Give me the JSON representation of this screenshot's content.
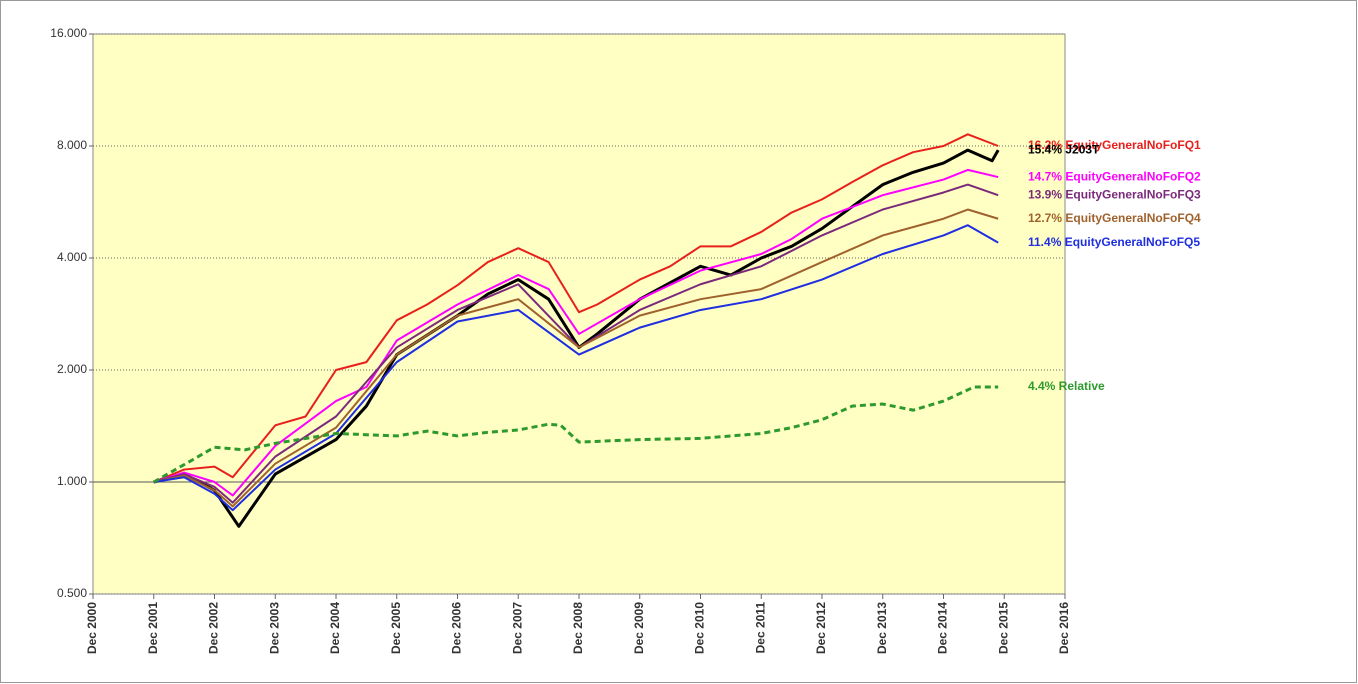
{
  "chart_data": {
    "type": "line",
    "log_scale": true,
    "ylim": [
      0.5,
      16
    ],
    "yticks": [
      {
        "value": 0.5,
        "label": "0.500"
      },
      {
        "value": 1,
        "label": "1.000"
      },
      {
        "value": 2,
        "label": "2.000"
      },
      {
        "value": 4,
        "label": "4.000"
      },
      {
        "value": 8,
        "label": "8.000"
      },
      {
        "value": 16,
        "label": "16.000"
      }
    ],
    "xlim": [
      2000,
      2016
    ],
    "xticks": [
      {
        "value": 2000,
        "label": "Dec 2000"
      },
      {
        "value": 2001,
        "label": "Dec 2001"
      },
      {
        "value": 2002,
        "label": "Dec 2002"
      },
      {
        "value": 2003,
        "label": "Dec 2003"
      },
      {
        "value": 2004,
        "label": "Dec 2004"
      },
      {
        "value": 2005,
        "label": "Dec 2005"
      },
      {
        "value": 2006,
        "label": "Dec 2006"
      },
      {
        "value": 2007,
        "label": "Dec 2007"
      },
      {
        "value": 2008,
        "label": "Dec 2008"
      },
      {
        "value": 2009,
        "label": "Dec 2009"
      },
      {
        "value": 2010,
        "label": "Dec 2010"
      },
      {
        "value": 2011,
        "label": "Dec 2011"
      },
      {
        "value": 2012,
        "label": "Dec 2012"
      },
      {
        "value": 2013,
        "label": "Dec 2013"
      },
      {
        "value": 2014,
        "label": "Dec 2014"
      },
      {
        "value": 2015,
        "label": "Dec 2015"
      },
      {
        "value": 2016,
        "label": "Dec 2016"
      }
    ],
    "grid": true,
    "series": [
      {
        "name": "16.2% EquityGeneralNoFoFQ1",
        "color": "#e8201c",
        "width": 2,
        "x": [
          2001,
          2001.5,
          2002,
          2002.3,
          2003,
          2003.5,
          2004,
          2004.5,
          2005,
          2005.5,
          2006,
          2006.5,
          2007,
          2007.5,
          2008,
          2008.3,
          2009,
          2009.5,
          2010,
          2010.5,
          2011,
          2011.5,
          2012,
          2012.5,
          2013,
          2013.5,
          2014,
          2014.4,
          2014.9
        ],
        "values": [
          1.0,
          1.08,
          1.1,
          1.03,
          1.42,
          1.5,
          2.0,
          2.1,
          2.72,
          3.0,
          3.38,
          3.9,
          4.25,
          3.9,
          2.86,
          3.0,
          3.5,
          3.8,
          4.3,
          4.3,
          4.7,
          5.3,
          5.75,
          6.4,
          7.1,
          7.7,
          8.0,
          8.6,
          8.0
        ]
      },
      {
        "name": "15.4% J203T",
        "color": "#000000",
        "width": 3,
        "x": [
          2001,
          2001.5,
          2002,
          2002.4,
          2003,
          2004,
          2004.5,
          2005,
          2006,
          2006.5,
          2007,
          2007.5,
          2008,
          2008.3,
          2009,
          2010,
          2010.5,
          2011,
          2011.5,
          2012,
          2012.5,
          2013,
          2013.5,
          2014,
          2014.4,
          2014.8,
          2014.9
        ],
        "values": [
          1.0,
          1.05,
          0.95,
          0.76,
          1.05,
          1.3,
          1.6,
          2.2,
          2.8,
          3.2,
          3.5,
          3.1,
          2.3,
          2.5,
          3.1,
          3.8,
          3.6,
          4.0,
          4.3,
          4.8,
          5.5,
          6.3,
          6.8,
          7.2,
          7.8,
          7.3,
          7.8
        ]
      },
      {
        "name": "14.7% EquityGeneralNoFoFQ2",
        "color": "#ff00ff",
        "width": 2,
        "x": [
          2001,
          2001.5,
          2002,
          2002.3,
          2003,
          2004,
          2004.5,
          2005,
          2006,
          2007,
          2007.5,
          2008,
          2009,
          2010,
          2011,
          2011.5,
          2012,
          2013,
          2014,
          2014.4,
          2014.9
        ],
        "values": [
          1.0,
          1.06,
          1.0,
          0.92,
          1.25,
          1.65,
          1.8,
          2.4,
          3.0,
          3.6,
          3.3,
          2.5,
          3.1,
          3.7,
          4.1,
          4.5,
          5.1,
          5.9,
          6.5,
          6.9,
          6.6
        ]
      },
      {
        "name": "13.9% EquityGeneralNoFoFQ3",
        "color": "#7b2a7b",
        "width": 2,
        "x": [
          2001,
          2001.5,
          2002,
          2002.3,
          2003,
          2004,
          2005,
          2006,
          2007,
          2008,
          2009,
          2010,
          2011,
          2012,
          2013,
          2014,
          2014.4,
          2014.9
        ],
        "values": [
          1.0,
          1.05,
          0.97,
          0.88,
          1.17,
          1.5,
          2.3,
          2.9,
          3.4,
          2.3,
          2.9,
          3.4,
          3.8,
          4.6,
          5.4,
          6.0,
          6.3,
          5.9
        ]
      },
      {
        "name": "12.7% EquityGeneralNoFoFQ4",
        "color": "#a0622d",
        "width": 2,
        "x": [
          2001,
          2001.5,
          2002,
          2002.3,
          2003,
          2004,
          2005,
          2006,
          2007,
          2008,
          2009,
          2010,
          2011,
          2012,
          2013,
          2014,
          2014.4,
          2014.9
        ],
        "values": [
          1.0,
          1.04,
          0.95,
          0.86,
          1.12,
          1.4,
          2.2,
          2.8,
          3.1,
          2.3,
          2.8,
          3.1,
          3.3,
          3.9,
          4.6,
          5.1,
          5.4,
          5.1
        ]
      },
      {
        "name": "11.4% EquityGeneralNoFoFQ5",
        "color": "#1f2ee0",
        "width": 2,
        "x": [
          2001,
          2001.5,
          2002,
          2002.3,
          2003,
          2004,
          2005,
          2006,
          2007,
          2008,
          2009,
          2010,
          2011,
          2012,
          2013,
          2014,
          2014.4,
          2014.9
        ],
        "values": [
          1.0,
          1.03,
          0.93,
          0.84,
          1.08,
          1.35,
          2.1,
          2.7,
          2.9,
          2.2,
          2.6,
          2.9,
          3.1,
          3.5,
          4.1,
          4.6,
          4.9,
          4.4
        ]
      },
      {
        "name": "4.4% Relative",
        "color": "#2e9a2e",
        "width": 3,
        "dashed": true,
        "x": [
          2001,
          2002,
          2002.5,
          2003,
          2004,
          2005,
          2005.5,
          2006,
          2006.5,
          2007,
          2007.5,
          2007.7,
          2008,
          2009,
          2010,
          2011,
          2011.5,
          2012,
          2012.5,
          2013,
          2013.5,
          2014,
          2014.5,
          2014.9
        ],
        "values": [
          1.0,
          1.24,
          1.22,
          1.27,
          1.35,
          1.33,
          1.37,
          1.33,
          1.36,
          1.38,
          1.43,
          1.42,
          1.28,
          1.3,
          1.31,
          1.35,
          1.4,
          1.47,
          1.6,
          1.62,
          1.56,
          1.65,
          1.8,
          1.8
        ]
      }
    ]
  }
}
